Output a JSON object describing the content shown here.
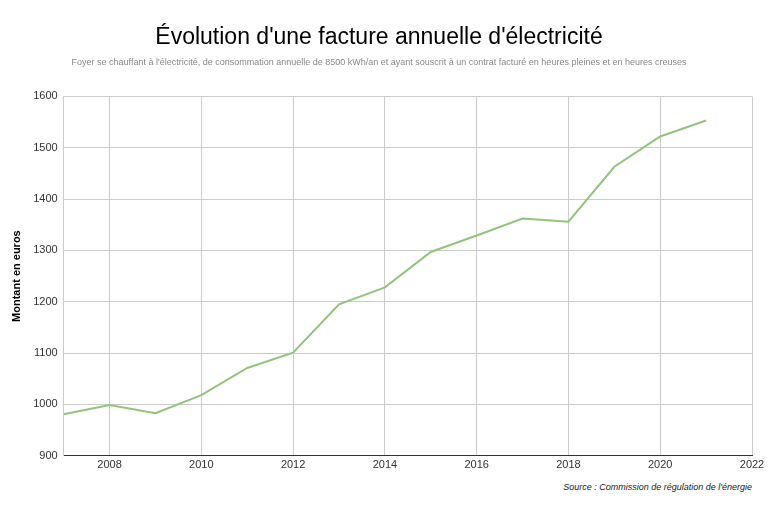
{
  "chart_data": {
    "type": "line",
    "title": "Évolution d'une facture annuelle d'électricité",
    "subtitle": "Foyer se chauffant à l'électricité, de consommation annuelle de 8500 kWh/an et ayant souscrit à un contrat facturé en heures pleines et en heures creuses",
    "y_label": "Montant en euros",
    "source": "Source : Commission de régulation de l'énergie",
    "x": [
      2007,
      2008,
      2009,
      2010,
      2011,
      2012,
      2013,
      2014,
      2015,
      2016,
      2017,
      2018,
      2019,
      2020,
      2021
    ],
    "values": [
      981,
      999,
      983,
      1018,
      1071,
      1101,
      1195,
      1228,
      1297,
      1329,
      1362,
      1356,
      1463,
      1522,
      1553
    ],
    "color": "#93c47d",
    "xlim": [
      2007,
      2022
    ],
    "xticks": [
      2008,
      2010,
      2012,
      2014,
      2016,
      2018,
      2020,
      2022
    ],
    "ylim": [
      900,
      1600
    ],
    "yticks": [
      900,
      1000,
      1100,
      1200,
      1300,
      1400,
      1500,
      1600
    ],
    "grid": true
  }
}
